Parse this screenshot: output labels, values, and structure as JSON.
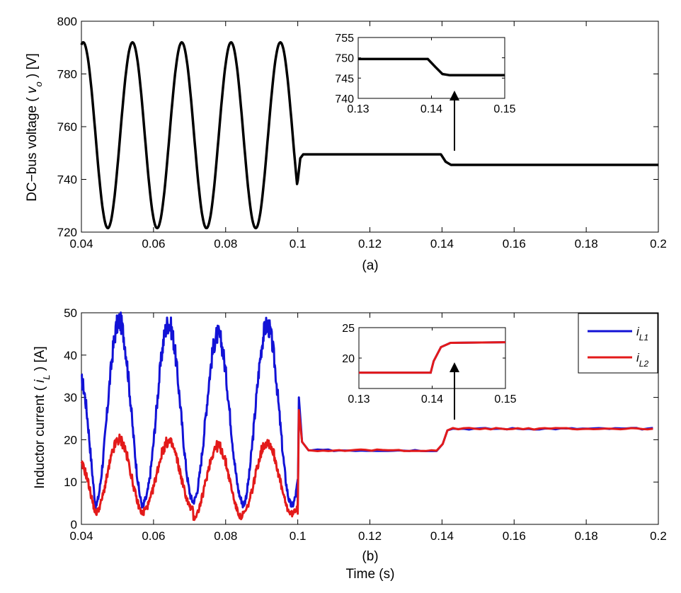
{
  "chart_data": [
    {
      "type": "line",
      "xlabel": "(a)",
      "ylabel_parts": [
        "DC−bus voltage ( ",
        "v",
        "o",
        " ) [V]"
      ],
      "xlim": [
        0.04,
        0.2
      ],
      "ylim": [
        720,
        800
      ],
      "xticks": [
        "0.04",
        "0.06",
        "0.08",
        "0.1",
        "0.12",
        "0.14",
        "0.16",
        "0.18",
        "0.2"
      ],
      "yticks": [
        "720",
        "740",
        "760",
        "780",
        "800"
      ],
      "grid": false,
      "series": [
        {
          "color": "#000000",
          "segments": [
            {
              "from": 0.04,
              "to": 0.1,
              "kind": "sine",
              "min": 721.5,
              "max": 792,
              "period": 0.01367,
              "first_peak": 0.0405
            },
            {
              "kind": "dip",
              "at": 0.1,
              "value": 739.5
            },
            {
              "from": 0.101,
              "to": 0.14,
              "kind": "steady",
              "value": 749.5
            },
            {
              "from": 0.14,
              "to": 0.2,
              "kind": "steady",
              "value": 745.5
            }
          ]
        }
      ],
      "inset": {
        "xlim": [
          0.13,
          0.15
        ],
        "ylim": [
          740,
          755
        ],
        "xticks": [
          "0.13",
          "0.14",
          "0.15"
        ],
        "yticks": [
          "740",
          "745",
          "750",
          "755"
        ],
        "points": [
          [
            0.13,
            749.7
          ],
          [
            0.1395,
            749.7
          ],
          [
            0.1405,
            747.8
          ],
          [
            0.1415,
            746.0
          ],
          [
            0.1425,
            745.7
          ],
          [
            0.15,
            745.7
          ]
        ]
      }
    },
    {
      "type": "line",
      "xlabel": "(b)",
      "xlabel_bottom": "Time (s)",
      "ylabel_parts": [
        "Inductor current ( ",
        "i",
        "L",
        " ) [A]"
      ],
      "xlim": [
        0.04,
        0.2
      ],
      "ylim": [
        0,
        50
      ],
      "xticks": [
        "0.04",
        "0.06",
        "0.08",
        "0.1",
        "0.12",
        "0.14",
        "0.16",
        "0.18",
        "0.2"
      ],
      "yticks": [
        "0",
        "10",
        "20",
        "30",
        "40",
        "50"
      ],
      "grid": false,
      "legend_position": "top-right",
      "series": [
        {
          "name_main": "i",
          "name_sub": "L1",
          "color": "#1212d6",
          "start": 34,
          "peaks": [
            48,
            47.5,
            44.8,
            47
          ],
          "troughs": [
            4,
            5.5,
            5.5,
            4.5
          ],
          "transient_peak": 30,
          "steady_before": 17.5,
          "steady_after": 22.6
        },
        {
          "name_main": "i",
          "name_sub": "L2",
          "color": "#e31a1a",
          "start": 14,
          "peaks": [
            20,
            19.5,
            18.5,
            19.5
          ],
          "troughs": [
            2.5,
            3.5,
            1.5,
            2.5
          ],
          "transient_peak": 27,
          "steady_before": 17.5,
          "steady_after": 22.6
        }
      ],
      "inset": {
        "xlim": [
          0.13,
          0.15
        ],
        "ylim": [
          15,
          25
        ],
        "xticks": [
          "0.13",
          "0.14",
          "0.15"
        ],
        "yticks": [
          "20",
          "25"
        ],
        "points": [
          [
            0.13,
            17.6
          ],
          [
            0.1398,
            17.6
          ],
          [
            0.1402,
            19.5
          ],
          [
            0.1412,
            21.8
          ],
          [
            0.1425,
            22.5
          ],
          [
            0.15,
            22.6
          ]
        ]
      }
    }
  ]
}
